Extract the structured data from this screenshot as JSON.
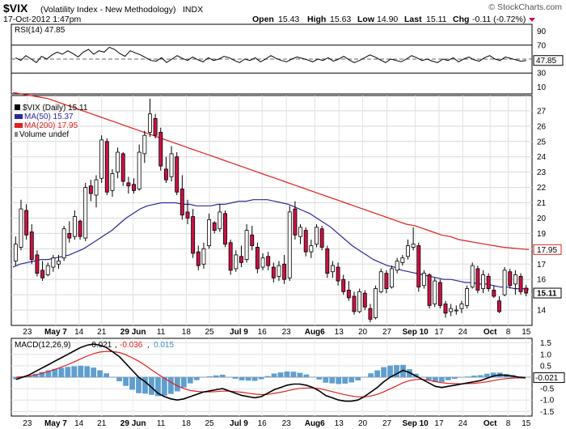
{
  "header": {
    "symbol": "$VIX",
    "name": "(Volatility Index - New Methodology)",
    "exchange": "INDX",
    "date": "17-Oct-2012 1:47pm",
    "open_label": "Open",
    "open": "15.43",
    "high_label": "High",
    "high": "15.63",
    "low_label": "Low",
    "low": "14.90",
    "last_label": "Last",
    "last": "15.11",
    "chg_label": "Chg",
    "chg": "-0.11 (-0.72%)",
    "watermark": "© StockCharts.com"
  },
  "colors": {
    "up": "#ffffff",
    "down": "#cc1144",
    "candle_outline": "#000000",
    "ma50": "#2a2a9a",
    "ma200": "#e02020",
    "hist": "#5f9fd0",
    "macd_signal": "#e02020",
    "macd_line": "#000000",
    "rsi": "#000000"
  },
  "chart_data": [
    {
      "type": "line",
      "panel": "RSI",
      "label": "RSI(14) 47.85",
      "y_ticks": [
        10,
        30,
        50,
        70,
        90
      ],
      "levels": [
        70,
        30
      ],
      "ylim": [
        0,
        100
      ],
      "last_value_label": "47.85",
      "values": [
        52,
        48,
        55,
        50,
        45,
        54,
        50,
        56,
        60,
        57,
        62,
        58,
        53,
        60,
        64,
        57,
        62,
        60,
        67,
        64,
        58,
        54,
        62,
        59,
        56,
        52,
        48,
        47,
        52,
        45,
        50,
        55,
        51,
        48,
        53,
        49,
        46,
        52,
        48,
        50,
        54,
        52,
        48,
        45,
        50,
        48,
        52,
        46,
        50,
        55,
        51,
        48,
        46,
        50,
        53,
        51,
        49,
        46,
        50,
        48,
        52,
        47,
        50,
        54,
        49,
        45,
        48,
        52,
        56,
        53,
        49,
        45,
        50,
        48,
        46,
        50,
        55,
        52,
        48,
        50,
        47,
        45,
        50,
        48,
        52,
        46,
        50,
        53,
        49,
        47,
        52,
        55,
        50,
        48,
        53,
        51,
        49,
        47,
        48
      ]
    },
    {
      "type": "candlestick",
      "panel": "price",
      "label": "$VIX (Daily) 15.11",
      "ma50_label": "MA(50) 15.37",
      "ma200_label": "MA(200) 17.95",
      "volume_label": "Volume undef",
      "y_ticks": [
        14,
        15,
        16,
        17,
        18,
        19,
        20,
        21,
        22,
        23,
        24,
        25,
        26,
        27
      ],
      "y_tick_labels": [
        "14",
        "",
        "16",
        "17",
        "",
        "19",
        "20",
        "21",
        "22",
        "23",
        "24",
        "25",
        "26",
        "27"
      ],
      "ylim": [
        13,
        28
      ],
      "last_value_label": "15.11",
      "ma200_value_label": "17.95",
      "x_labels": [
        "23",
        "May 7",
        "14",
        "21",
        "29 Jun",
        "11",
        "18",
        "25",
        "Jul 9",
        "16",
        "23",
        "Aug6",
        "13",
        "20",
        "27",
        "Sep 10",
        "17",
        "24",
        "Oct",
        "8",
        "15"
      ],
      "candles": [
        [
          17.2,
          18.8,
          16.9,
          18.3
        ],
        [
          18.1,
          21.2,
          17.9,
          20.6
        ],
        [
          20.5,
          20.9,
          18.6,
          18.9
        ],
        [
          19.1,
          19.6,
          17.0,
          17.3
        ],
        [
          17.6,
          17.9,
          16.2,
          16.4
        ],
        [
          16.6,
          17.2,
          15.9,
          16.1
        ],
        [
          16.3,
          17.1,
          16.2,
          16.9
        ],
        [
          16.8,
          17.6,
          16.5,
          17.4
        ],
        [
          17.0,
          17.6,
          16.7,
          17.2
        ],
        [
          17.4,
          19.5,
          17.2,
          19.3
        ],
        [
          19.0,
          19.8,
          18.4,
          18.7
        ],
        [
          18.8,
          20.5,
          18.6,
          20.1
        ],
        [
          19.8,
          19.9,
          18.6,
          18.8
        ],
        [
          18.7,
          22.3,
          18.5,
          22.0
        ],
        [
          22.1,
          22.5,
          21.1,
          21.6
        ],
        [
          21.5,
          22.8,
          20.7,
          22.5
        ],
        [
          22.6,
          25.4,
          22.3,
          25.1
        ],
        [
          25.0,
          25.2,
          21.5,
          21.7
        ],
        [
          21.8,
          23.2,
          21.4,
          22.9
        ],
        [
          23.0,
          24.6,
          22.6,
          24.3
        ],
        [
          24.2,
          24.3,
          22.1,
          22.4
        ],
        [
          22.3,
          22.7,
          21.6,
          22.1
        ],
        [
          22.2,
          22.6,
          21.6,
          21.8
        ],
        [
          21.9,
          24.8,
          21.8,
          24.3
        ],
        [
          24.2,
          25.7,
          23.6,
          25.4
        ],
        [
          25.6,
          27.8,
          25.3,
          26.8
        ],
        [
          26.5,
          26.8,
          25.2,
          25.4
        ],
        [
          25.6,
          25.9,
          23.1,
          23.4
        ],
        [
          23.2,
          24.0,
          22.3,
          22.5
        ],
        [
          22.7,
          24.7,
          22.4,
          24.2
        ],
        [
          24.0,
          24.3,
          21.5,
          21.7
        ],
        [
          21.9,
          22.8,
          19.9,
          20.2
        ],
        [
          20.4,
          21.2,
          19.6,
          20.0
        ],
        [
          20.1,
          20.6,
          17.4,
          17.7
        ],
        [
          17.8,
          18.2,
          16.6,
          16.9
        ],
        [
          17.0,
          18.4,
          16.7,
          18.0
        ],
        [
          18.2,
          20.3,
          18.0,
          19.9
        ],
        [
          19.7,
          19.8,
          19.0,
          19.2
        ],
        [
          19.3,
          20.9,
          19.1,
          20.4
        ],
        [
          20.3,
          20.5,
          18.1,
          18.3
        ],
        [
          18.4,
          18.6,
          16.3,
          16.6
        ],
        [
          16.7,
          17.9,
          16.5,
          17.6
        ],
        [
          17.5,
          18.2,
          16.8,
          17.1
        ],
        [
          17.3,
          19.6,
          17.1,
          19.2
        ],
        [
          18.9,
          19.5,
          17.9,
          18.2
        ],
        [
          18.1,
          18.4,
          16.4,
          16.7
        ],
        [
          16.8,
          17.7,
          16.6,
          17.4
        ],
        [
          17.5,
          17.8,
          16.6,
          16.9
        ],
        [
          16.8,
          17.1,
          15.8,
          16.1
        ],
        [
          16.2,
          17.2,
          15.9,
          16.9
        ],
        [
          17.0,
          17.6,
          15.7,
          16.0
        ],
        [
          16.1,
          20.8,
          15.9,
          20.4
        ],
        [
          20.6,
          21.1,
          18.6,
          18.9
        ],
        [
          18.8,
          19.6,
          18.3,
          19.4
        ],
        [
          19.2,
          19.4,
          17.5,
          17.8
        ],
        [
          17.8,
          18.6,
          17.4,
          18.2
        ],
        [
          18.3,
          19.6,
          18.1,
          19.4
        ],
        [
          19.3,
          19.5,
          17.9,
          18.1
        ],
        [
          18.0,
          18.2,
          16.1,
          16.4
        ],
        [
          16.5,
          17.2,
          16.1,
          16.9
        ],
        [
          16.8,
          17.1,
          15.6,
          15.9
        ],
        [
          16.0,
          16.3,
          15.0,
          15.2
        ],
        [
          15.3,
          15.9,
          14.6,
          14.8
        ],
        [
          14.9,
          15.2,
          13.7,
          13.9
        ],
        [
          13.9,
          15.4,
          13.8,
          15.2
        ],
        [
          15.1,
          15.3,
          14.0,
          14.2
        ],
        [
          14.1,
          14.4,
          13.2,
          13.4
        ],
        [
          13.5,
          15.6,
          13.4,
          15.4
        ],
        [
          15.2,
          16.7,
          15.1,
          16.5
        ],
        [
          16.4,
          16.6,
          15.1,
          15.4
        ],
        [
          15.5,
          16.9,
          15.4,
          16.7
        ],
        [
          16.6,
          17.4,
          16.4,
          17.2
        ],
        [
          17.1,
          17.6,
          16.9,
          17.4
        ],
        [
          17.5,
          18.6,
          17.3,
          18.2
        ],
        [
          18.1,
          19.4,
          17.9,
          18.3
        ],
        [
          18.2,
          18.4,
          15.2,
          15.5
        ],
        [
          15.6,
          16.6,
          15.4,
          16.4
        ],
        [
          16.3,
          16.4,
          14.1,
          14.3
        ],
        [
          14.4,
          16.1,
          14.2,
          15.9
        ],
        [
          15.8,
          16.0,
          14.1,
          14.3
        ],
        [
          14.4,
          14.6,
          13.5,
          13.8
        ],
        [
          13.9,
          14.4,
          13.6,
          14.1
        ],
        [
          14.0,
          14.3,
          13.7,
          14.0
        ],
        [
          14.1,
          14.6,
          13.8,
          14.4
        ],
        [
          14.3,
          15.6,
          14.1,
          15.4
        ],
        [
          15.5,
          17.1,
          15.4,
          16.9
        ],
        [
          16.7,
          16.9,
          15.1,
          15.3
        ],
        [
          15.4,
          16.6,
          15.1,
          16.3
        ],
        [
          16.2,
          16.4,
          15.2,
          15.4
        ],
        [
          15.3,
          15.6,
          14.8,
          14.9
        ],
        [
          14.6,
          14.9,
          13.8,
          13.9
        ],
        [
          15.0,
          16.8,
          14.9,
          16.6
        ],
        [
          16.5,
          16.7,
          15.4,
          15.6
        ],
        [
          15.7,
          16.6,
          15.0,
          16.3
        ],
        [
          16.2,
          16.4,
          15.0,
          15.2
        ],
        [
          15.43,
          15.63,
          14.9,
          15.11
        ]
      ],
      "ma50": [
        16.8,
        17.0,
        17.1,
        17.2,
        17.3,
        17.3,
        17.4,
        17.5,
        17.6,
        17.8,
        18.0,
        18.3,
        18.6,
        18.9,
        19.2,
        19.6,
        20.0,
        20.3,
        20.6,
        20.8,
        20.9,
        21.0,
        21.0,
        21.0,
        20.9,
        20.9,
        20.8,
        20.8,
        20.8,
        20.9,
        20.9,
        21.0,
        21.1,
        21.1,
        21.2,
        21.2,
        21.2,
        21.1,
        21.0,
        20.9,
        20.7,
        20.5,
        20.3,
        20.0,
        19.7,
        19.4,
        19.0,
        18.6,
        18.2,
        17.9,
        17.6,
        17.3,
        17.1,
        16.9,
        16.8,
        16.6,
        16.5,
        16.4,
        16.3,
        16.2,
        16.1,
        16.0,
        16.0,
        15.9,
        15.8,
        15.8,
        15.7,
        15.7,
        15.6,
        15.5,
        15.5,
        15.4,
        15.4,
        15.37
      ],
      "ma200": [
        28.2,
        28.1,
        28.0,
        27.9,
        27.8,
        27.6,
        27.4,
        27.2,
        27.0,
        26.8,
        26.6,
        26.4,
        26.2,
        26.0,
        25.8,
        25.6,
        25.4,
        25.2,
        25.0,
        24.8,
        24.6,
        24.4,
        24.2,
        24.0,
        23.8,
        23.6,
        23.4,
        23.2,
        23.0,
        22.8,
        22.6,
        22.4,
        22.2,
        22.0,
        21.8,
        21.6,
        21.4,
        21.2,
        21.0,
        20.8,
        20.6,
        20.4,
        20.2,
        20.0,
        19.8,
        19.6,
        19.5,
        19.3,
        19.1,
        18.9,
        18.8,
        18.6,
        18.5,
        18.4,
        18.3,
        18.2,
        18.1,
        18.05,
        18.0,
        17.95
      ]
    },
    {
      "type": "histogram+line",
      "panel": "MACD",
      "label_prefix": "MACD(12,26,9)",
      "macd_value": "-0.021",
      "signal_value": "-0.036",
      "hist_value": "0.015",
      "y_ticks": [
        1.5,
        1.0,
        0.5,
        0.0,
        -0.5,
        -1.0,
        -1.5
      ],
      "y_tick_labels": [
        "1.5",
        "1.0",
        "0.5",
        "",
        "-0.5",
        "-1.0",
        "-1.5"
      ],
      "ylim": [
        -1.7,
        1.7
      ],
      "last_value_label": "-0.021",
      "macd": [
        -0.1,
        0.0,
        0.1,
        0.25,
        0.4,
        0.55,
        0.7,
        0.85,
        1.0,
        1.15,
        1.3,
        1.4,
        1.45,
        1.4,
        1.3,
        1.1,
        0.9,
        0.6,
        0.3,
        0.0,
        -0.2,
        -0.45,
        -0.7,
        -0.85,
        -0.95,
        -1.0,
        -0.95,
        -0.85,
        -0.75,
        -0.65,
        -0.6,
        -0.55,
        -0.5,
        -0.6,
        -0.7,
        -0.8,
        -0.85,
        -0.9,
        -0.85,
        -0.7,
        -0.55,
        -0.45,
        -0.35,
        -0.3,
        -0.3,
        -0.35,
        -0.45,
        -0.6,
        -0.8,
        -0.9,
        -1.0,
        -1.05,
        -1.05,
        -1.0,
        -0.85,
        -0.65,
        -0.45,
        -0.2,
        0.0,
        0.15,
        0.3,
        0.2,
        0.05,
        -0.1,
        -0.25,
        -0.4,
        -0.45,
        -0.4,
        -0.35,
        -0.3,
        -0.25,
        -0.2,
        -0.15,
        -0.05,
        0.05,
        0.1,
        0.08,
        0.05,
        0.0,
        -0.02
      ],
      "signal": [
        0.0,
        0.02,
        0.05,
        0.1,
        0.17,
        0.25,
        0.34,
        0.44,
        0.55,
        0.67,
        0.8,
        0.92,
        1.03,
        1.1,
        1.13,
        1.12,
        1.08,
        0.98,
        0.85,
        0.7,
        0.52,
        0.32,
        0.13,
        -0.05,
        -0.22,
        -0.38,
        -0.5,
        -0.58,
        -0.62,
        -0.64,
        -0.64,
        -0.63,
        -0.61,
        -0.61,
        -0.63,
        -0.66,
        -0.7,
        -0.74,
        -0.76,
        -0.75,
        -0.71,
        -0.66,
        -0.6,
        -0.54,
        -0.49,
        -0.47,
        -0.47,
        -0.5,
        -0.56,
        -0.63,
        -0.7,
        -0.77,
        -0.82,
        -0.86,
        -0.86,
        -0.82,
        -0.75,
        -0.64,
        -0.51,
        -0.38,
        -0.24,
        -0.15,
        -0.1,
        -0.1,
        -0.13,
        -0.19,
        -0.24,
        -0.27,
        -0.28,
        -0.29,
        -0.28,
        -0.27,
        -0.24,
        -0.2,
        -0.15,
        -0.1,
        -0.06,
        -0.04,
        -0.03,
        -0.036
      ],
      "x_labels": [
        "23",
        "May 7",
        "14",
        "21",
        "29 Jun",
        "11",
        "18",
        "25",
        "Jul 9",
        "16",
        "23",
        "Aug6",
        "13",
        "20",
        "27",
        "Sep 10",
        "17",
        "24",
        "Oct",
        "8",
        "15"
      ]
    }
  ]
}
